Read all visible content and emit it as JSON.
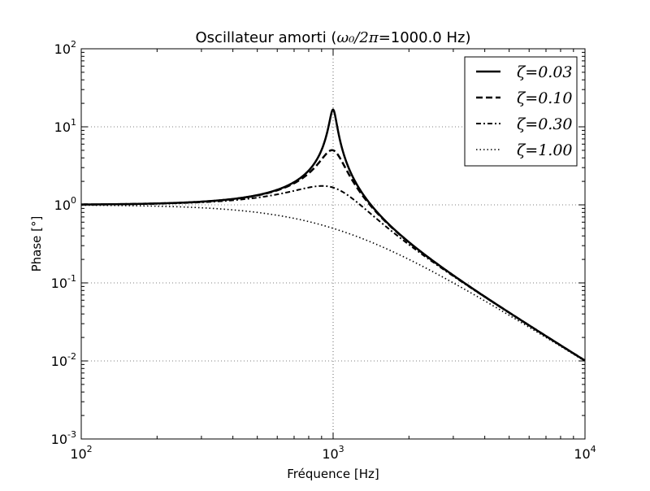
{
  "chart_data": {
    "type": "line",
    "title": {
      "prefix": "Oscillateur amorti (",
      "math": "ω₀/2π",
      "suffix": "=1000.0 Hz)"
    },
    "xlabel": "Fréquence [Hz]",
    "ylabel": "Phase [°]",
    "xscale": "log",
    "yscale": "log",
    "xlim": [
      100,
      10000
    ],
    "ylim": [
      0.001,
      100
    ],
    "grid": true,
    "legend_position": "top-right",
    "x_ticks": [
      {
        "value": 100,
        "base": "10",
        "exp": "2"
      },
      {
        "value": 1000,
        "base": "10",
        "exp": "3"
      },
      {
        "value": 10000,
        "base": "10",
        "exp": "4"
      }
    ],
    "y_ticks": [
      {
        "value": 0.001,
        "base": "10",
        "exp": "-3"
      },
      {
        "value": 0.01,
        "base": "10",
        "exp": "-2"
      },
      {
        "value": 0.1,
        "base": "10",
        "exp": "-1"
      },
      {
        "value": 1,
        "base": "10",
        "exp": "0"
      },
      {
        "value": 10,
        "base": "10",
        "exp": "1"
      },
      {
        "value": 100,
        "base": "10",
        "exp": "2"
      }
    ],
    "resonance_frequency": 1000,
    "series": [
      {
        "name": "ζ=0.03",
        "zeta": 0.03,
        "dash": "solid"
      },
      {
        "name": "ζ=0.10",
        "zeta": 0.1,
        "dash": "dashed"
      },
      {
        "name": "ζ=0.30",
        "zeta": 0.3,
        "dash": "dashdot"
      },
      {
        "name": "ζ=1.00",
        "zeta": 1.0,
        "dash": "dotted"
      }
    ]
  }
}
